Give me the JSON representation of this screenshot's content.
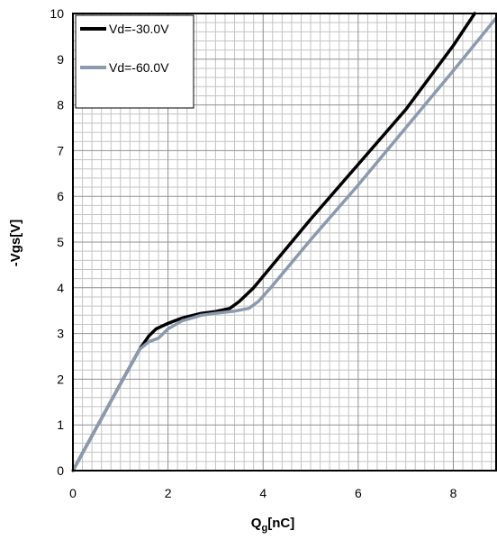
{
  "chart_data": {
    "type": "line",
    "xlabel_main": "Q",
    "xlabel_sub": "g",
    "xlabel_unit": "[nC]",
    "ylabel": "-Vgs[V]",
    "xlim": [
      0,
      8.9
    ],
    "ylim": [
      0,
      10
    ],
    "x_ticks": [
      "0",
      "2",
      "4",
      "6",
      "8"
    ],
    "y_ticks": [
      "0",
      "1",
      "2",
      "3",
      "4",
      "5",
      "6",
      "7",
      "8",
      "9",
      "10"
    ],
    "grid": true,
    "legend_position": "top-left",
    "series": [
      {
        "name": "Vd=-30.0V",
        "color": "#000000",
        "points": [
          [
            0,
            0
          ],
          [
            0.5,
            0.95
          ],
          [
            1.0,
            1.9
          ],
          [
            1.4,
            2.65
          ],
          [
            1.6,
            2.95
          ],
          [
            1.75,
            3.1
          ],
          [
            2.0,
            3.22
          ],
          [
            2.3,
            3.34
          ],
          [
            2.7,
            3.44
          ],
          [
            3.0,
            3.48
          ],
          [
            3.3,
            3.55
          ],
          [
            3.5,
            3.7
          ],
          [
            3.8,
            4.0
          ],
          [
            4.2,
            4.5
          ],
          [
            5.0,
            5.5
          ],
          [
            6.0,
            6.7
          ],
          [
            7.0,
            7.9
          ],
          [
            8.0,
            9.3
          ],
          [
            8.45,
            10.0
          ]
        ]
      },
      {
        "name": "Vd=-60.0V",
        "color": "#8c9aae",
        "points": [
          [
            0,
            0
          ],
          [
            0.5,
            0.95
          ],
          [
            1.0,
            1.9
          ],
          [
            1.4,
            2.65
          ],
          [
            1.6,
            2.82
          ],
          [
            1.8,
            2.9
          ],
          [
            2.0,
            3.1
          ],
          [
            2.3,
            3.28
          ],
          [
            2.7,
            3.4
          ],
          [
            3.0,
            3.44
          ],
          [
            3.4,
            3.49
          ],
          [
            3.7,
            3.55
          ],
          [
            3.9,
            3.7
          ],
          [
            4.2,
            4.05
          ],
          [
            5.0,
            5.05
          ],
          [
            6.0,
            6.25
          ],
          [
            7.0,
            7.5
          ],
          [
            8.0,
            8.75
          ],
          [
            8.9,
            9.9
          ]
        ]
      }
    ]
  }
}
